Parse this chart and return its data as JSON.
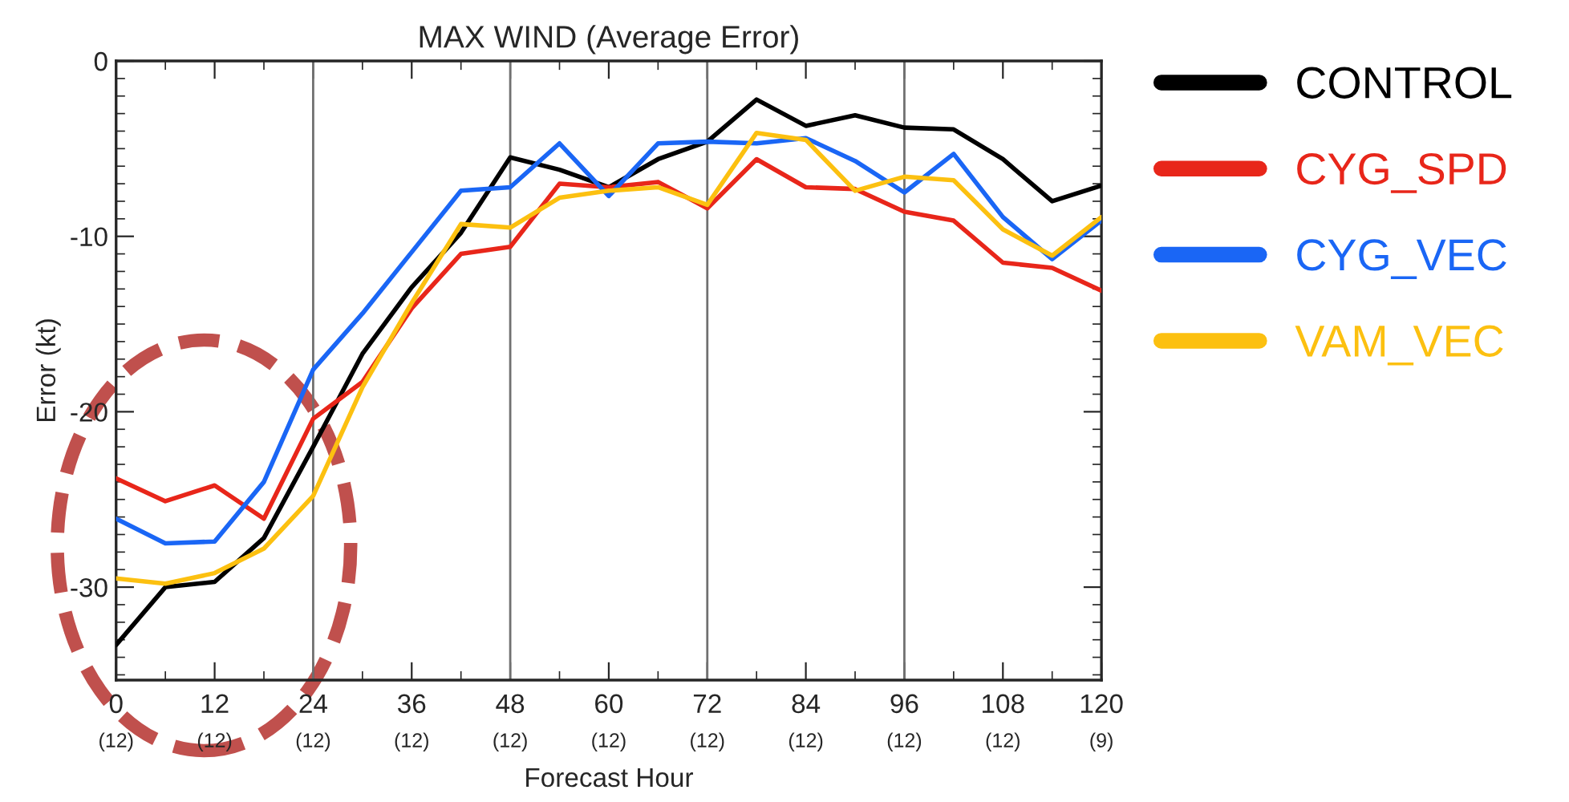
{
  "chart_data": {
    "type": "line",
    "title": "MAX WIND (Average Error)",
    "xlabel": "Forecast Hour",
    "ylabel": "Error (kt)",
    "x": [
      0,
      6,
      12,
      18,
      24,
      30,
      36,
      42,
      48,
      54,
      60,
      66,
      72,
      78,
      84,
      90,
      96,
      102,
      108,
      114,
      120
    ],
    "series": [
      {
        "name": "CONTROL",
        "color": "#000000",
        "values": [
          -33.3,
          -30.0,
          -29.7,
          -27.2,
          -22.0,
          -16.7,
          -12.9,
          -9.8,
          -5.5,
          -6.2,
          -7.2,
          -5.6,
          -4.6,
          -2.2,
          -3.7,
          -3.1,
          -3.8,
          -3.9,
          -5.6,
          -8.0,
          -7.1
        ]
      },
      {
        "name": "CYG_SPD",
        "color": "#e8261a",
        "values": [
          -23.8,
          -25.1,
          -24.2,
          -26.1,
          -20.4,
          -18.3,
          -14.1,
          -11.0,
          -10.6,
          -7.0,
          -7.2,
          -6.9,
          -8.4,
          -5.6,
          -7.2,
          -7.3,
          -8.6,
          -9.1,
          -11.5,
          -11.8,
          -13.1
        ]
      },
      {
        "name": "CYG_VEC",
        "color": "#1a66f5",
        "values": [
          -26.1,
          -27.5,
          -27.4,
          -24.0,
          -17.6,
          -14.4,
          -10.9,
          -7.4,
          -7.2,
          -4.7,
          -7.7,
          -4.7,
          -4.6,
          -4.7,
          -4.4,
          -5.7,
          -7.5,
          -5.3,
          -8.9,
          -11.3,
          -9.1
        ]
      },
      {
        "name": "VAM_VEC",
        "color": "#fcc010",
        "values": [
          -29.5,
          -29.8,
          -29.2,
          -27.8,
          -24.8,
          -18.6,
          -13.8,
          -9.3,
          -9.5,
          -7.8,
          -7.4,
          -7.2,
          -8.2,
          -4.1,
          -4.5,
          -7.4,
          -6.6,
          -6.8,
          -9.6,
          -11.1,
          -8.9
        ]
      }
    ],
    "xlim": [
      0,
      120
    ],
    "ylim": [
      -35.3,
      0
    ],
    "xticks": [
      0,
      12,
      24,
      36,
      48,
      60,
      72,
      84,
      96,
      108,
      120
    ],
    "annotations": [
      "(12)",
      "(12)",
      "(12)",
      "(12)",
      "(12)",
      "(12)",
      "(12)",
      "(12)",
      "(12)",
      "(12)",
      "(9)"
    ],
    "yticks": [
      -30,
      -20,
      -10,
      0
    ],
    "ref_lines": [
      {
        "axis": "x",
        "value": 24,
        "color": "#707070"
      },
      {
        "axis": "x",
        "value": 48,
        "color": "#707070"
      },
      {
        "axis": "x",
        "value": 72,
        "color": "#707070"
      },
      {
        "axis": "x",
        "value": 96,
        "color": "#707070"
      }
    ],
    "legend": "right",
    "grid": false,
    "marker": "none",
    "line_style": "solid"
  }
}
